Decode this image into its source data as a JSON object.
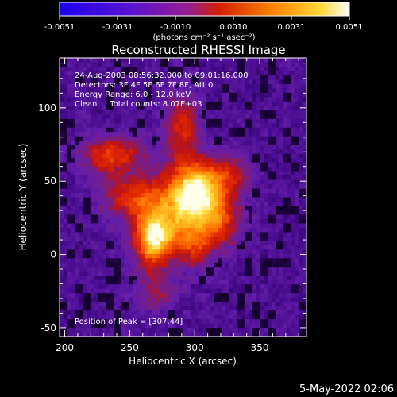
{
  "chart_data": {
    "type": "heatmap",
    "title": "Reconstructed RHESSI Image",
    "xlabel": "Heliocentric X (arcsec)",
    "ylabel": "Heliocentric Y (arcsec)",
    "xlim": [
      196,
      386
    ],
    "ylim": [
      -56,
      134
    ],
    "xticks": [
      200,
      250,
      300,
      350
    ],
    "yticks": [
      -50,
      0,
      50,
      100
    ],
    "colorbar": {
      "min": -0.0051,
      "max": 0.0051,
      "ticks": [
        "-0.0051",
        "-0.0031",
        "-0.0010",
        "0.0010",
        "0.0031",
        "0.0051"
      ],
      "unit_label": "(photons cm⁻² s⁻¹ asec⁻²)"
    },
    "annotations": [
      "24-Aug-2003 08:56:32.000 to 09:01:16.000",
      "Detectors: 3F 4F 5F 6F 7F 8F, Att 0",
      "Energy Range: 6.0 - 12.0 keV",
      "Clean     Total counts: 8.07E+03"
    ],
    "peak_label": "Position of Peak = [307,44]",
    "peak": {
      "x": 307,
      "y": 44
    },
    "sources": [
      {
        "x": 302,
        "y": 44,
        "sx": 16,
        "sy": 14,
        "amp": 1.0
      },
      {
        "x": 268,
        "y": 10,
        "sx": 10,
        "sy": 12,
        "amp": 0.85
      },
      {
        "x": 237,
        "y": 68,
        "sx": 18,
        "sy": 9,
        "amp": 0.55
      },
      {
        "x": 290,
        "y": 88,
        "sx": 9,
        "sy": 16,
        "amp": 0.5
      },
      {
        "x": 285,
        "y": 25,
        "sx": 22,
        "sy": 16,
        "amp": 0.55
      },
      {
        "x": 250,
        "y": 40,
        "sx": 16,
        "sy": 10,
        "amp": 0.45
      },
      {
        "x": 320,
        "y": 20,
        "sx": 12,
        "sy": 12,
        "amp": 0.35
      },
      {
        "x": 330,
        "y": 55,
        "sx": 10,
        "sy": 8,
        "amp": 0.3
      },
      {
        "x": 270,
        "y": -25,
        "sx": 12,
        "sy": 10,
        "amp": 0.3
      },
      {
        "x": 300,
        "y": 5,
        "sx": 10,
        "sy": 10,
        "amp": 0.35
      }
    ]
  },
  "footer": {
    "date": "5-May-2022 02:06"
  }
}
